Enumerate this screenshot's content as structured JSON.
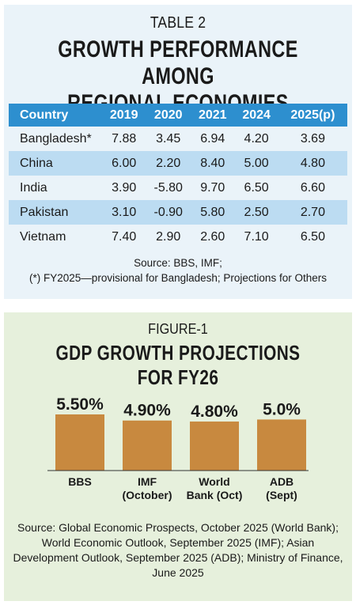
{
  "table": {
    "kicker": "TABLE 2",
    "title_line1": "GROWTH PERFORMANCE AMONG",
    "title_line2": "REGIONAL ECONOMIES",
    "headers": [
      "Country",
      "2019",
      "2020",
      "2021",
      "2024",
      "2025(p)"
    ],
    "rows": [
      [
        "Bangladesh*",
        "7.88",
        "3.45",
        "6.94",
        "4.20",
        "3.69"
      ],
      [
        "China",
        "6.00",
        "2.20",
        "8.40",
        "5.00",
        "4.80"
      ],
      [
        "India",
        "3.90",
        "-5.80",
        "9.70",
        "6.50",
        "6.60"
      ],
      [
        "Pakistan",
        "3.10",
        "-0.90",
        "5.80",
        "2.50",
        "2.70"
      ],
      [
        "Vietnam",
        "7.40",
        "2.90",
        "2.60",
        "7.10",
        "6.50"
      ]
    ],
    "source_line1": "Source: BBS, IMF;",
    "source_line2": "(*) FY2025—provisional for Bangladesh; Projections for Others",
    "colors": {
      "header": "#2d8fcf",
      "stripe": "#bcdcf2",
      "panel": "#eaf3f9"
    }
  },
  "figure": {
    "kicker": "FIGURE-1",
    "title": "GDP GROWTH PROJECTIONS FOR FY26",
    "source": "Source: Global Economic Prospects, October 2025 (World Bank); World Economic Outlook, September 2025 (IMF); Asian Development Outlook, September 2025 (ADB); Ministry of Finance, June 2025",
    "colors": {
      "bar": "#c8893f",
      "panel": "#e6f0dc"
    }
  },
  "chart_data": {
    "type": "bar",
    "title": "GDP GROWTH PROJECTIONS FOR FY26",
    "categories": [
      [
        "BBS"
      ],
      [
        "IMF",
        "(October)"
      ],
      [
        "World",
        "Bank (Oct)"
      ],
      [
        "ADB",
        "(Sept)"
      ]
    ],
    "values": [
      5.5,
      4.9,
      4.8,
      5.0
    ],
    "data_labels": [
      "5.50%",
      "4.90%",
      "4.80%",
      "5.0%"
    ],
    "ylim": [
      0,
      5.5
    ],
    "grid": false,
    "legend": "none"
  }
}
